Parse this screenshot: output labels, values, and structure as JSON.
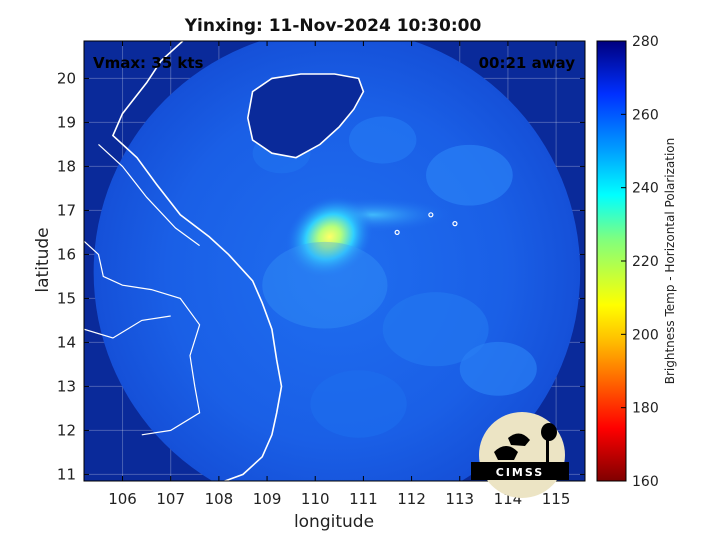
{
  "chart_data": {
    "type": "heatmap",
    "title": "Yinxing: 11-Nov-2024 10:30:00",
    "xlabel": "longitude",
    "ylabel": "latitude",
    "xlim": [
      105.2,
      115.6
    ],
    "ylim": [
      10.85,
      20.85
    ],
    "xticks": [
      106,
      107,
      108,
      109,
      110,
      111,
      112,
      113,
      114,
      115
    ],
    "yticks": [
      11,
      12,
      13,
      14,
      15,
      16,
      17,
      18,
      19,
      20
    ],
    "grid": true,
    "colorbar": {
      "label": "Brightness Temp - Horizontal Polarization",
      "min": 160,
      "max": 280,
      "ticks": [
        160,
        180,
        200,
        220,
        240,
        260,
        280
      ],
      "colormap": "jet"
    },
    "annotations": {
      "vmax": "Vmax: 35 kts",
      "time_offset": "00:21 away"
    },
    "swath": {
      "center_lon": 110.45,
      "center_lat": 15.6,
      "radius_deg": 5.05
    },
    "storm_feature": {
      "center_lon": 110.3,
      "center_lat": 16.4,
      "min_temp": 212
    },
    "logo_text": "CIMSS",
    "colors": {
      "land_outline": "#ffffff",
      "background_cold": "#0a2a9a",
      "swath_base": "#1760e6"
    }
  }
}
